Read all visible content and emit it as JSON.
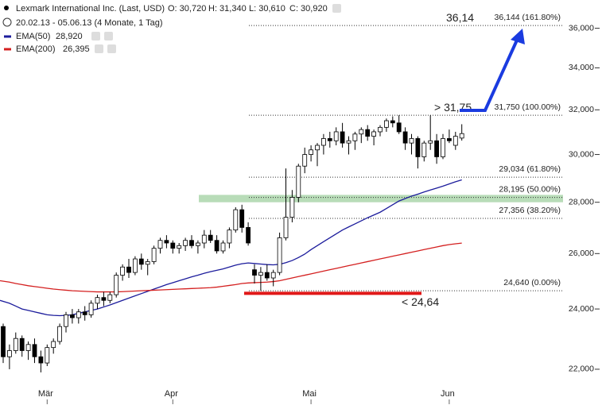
{
  "header": {
    "title": "Lexmark International Inc. (Last, USD)",
    "ohlc_labels": [
      "O: 30,720",
      "H: 31,340",
      "L: 30,610",
      "C: 30,920"
    ],
    "period": "20.02.13 - 05.06.13 (4 Monate, 1 Tag)"
  },
  "chart_data": {
    "type": "candlestick",
    "log_scale": true,
    "categories": [
      null,
      null,
      null,
      null,
      null,
      null,
      null,
      "Mär",
      null,
      null,
      null,
      null,
      null,
      null,
      null,
      null,
      null,
      null,
      null,
      null,
      null,
      null,
      null,
      null,
      null,
      null,
      null,
      "Apr",
      null,
      null,
      null,
      null,
      null,
      null,
      null,
      null,
      null,
      null,
      null,
      null,
      null,
      null,
      null,
      null,
      null,
      null,
      null,
      null,
      null,
      "Mai",
      null,
      null,
      null,
      null,
      null,
      null,
      null,
      null,
      null,
      null,
      null,
      null,
      null,
      null,
      null,
      null,
      null,
      null,
      null,
      null,
      null,
      "Jun",
      null,
      null
    ],
    "ohlc": [
      [
        23.4,
        23.5,
        22.2,
        22.4
      ],
      [
        22.4,
        22.8,
        22.0,
        22.6
      ],
      [
        22.6,
        23.2,
        22.5,
        23.0
      ],
      [
        23.0,
        23.1,
        22.4,
        22.6
      ],
      [
        22.6,
        22.9,
        22.3,
        22.8
      ],
      [
        22.8,
        23.0,
        22.2,
        22.4
      ],
      [
        22.4,
        22.6,
        21.9,
        22.2
      ],
      [
        22.2,
        22.8,
        22.1,
        22.7
      ],
      [
        22.7,
        23.0,
        22.5,
        22.9
      ],
      [
        22.9,
        23.5,
        22.8,
        23.4
      ],
      [
        23.4,
        23.9,
        23.2,
        23.8
      ],
      [
        23.8,
        24.0,
        23.5,
        23.7
      ],
      [
        23.7,
        24.0,
        23.5,
        23.9
      ],
      [
        23.9,
        24.1,
        23.6,
        23.8
      ],
      [
        23.8,
        24.3,
        23.7,
        24.2
      ],
      [
        24.2,
        24.5,
        24.0,
        24.4
      ],
      [
        24.4,
        24.6,
        24.1,
        24.3
      ],
      [
        24.3,
        24.6,
        24.2,
        24.5
      ],
      [
        24.5,
        25.3,
        24.4,
        25.2
      ],
      [
        25.2,
        25.6,
        25.0,
        25.5
      ],
      [
        25.5,
        25.8,
        25.1,
        25.3
      ],
      [
        25.3,
        25.9,
        25.2,
        25.8
      ],
      [
        25.8,
        26.0,
        25.4,
        25.6
      ],
      [
        25.6,
        25.8,
        25.2,
        25.7
      ],
      [
        25.7,
        26.3,
        25.6,
        26.2
      ],
      [
        26.2,
        26.6,
        26.0,
        26.5
      ],
      [
        26.5,
        26.7,
        26.2,
        26.4
      ],
      [
        26.4,
        26.5,
        26.0,
        26.2
      ],
      [
        26.2,
        26.4,
        26.0,
        26.3
      ],
      [
        26.3,
        26.6,
        26.1,
        26.5
      ],
      [
        26.5,
        26.7,
        26.2,
        26.3
      ],
      [
        26.3,
        26.5,
        26.0,
        26.4
      ],
      [
        26.4,
        26.9,
        26.2,
        26.7
      ],
      [
        26.7,
        26.9,
        26.4,
        26.5
      ],
      [
        26.5,
        26.7,
        26.0,
        26.1
      ],
      [
        26.1,
        26.5,
        26.0,
        26.4
      ],
      [
        26.4,
        27.0,
        26.2,
        26.9
      ],
      [
        26.9,
        27.8,
        26.8,
        27.7
      ],
      [
        27.7,
        27.9,
        26.8,
        27.0
      ],
      [
        27.0,
        27.2,
        26.3,
        26.4
      ],
      [
        25.4,
        25.6,
        24.9,
        25.2
      ],
      [
        25.2,
        25.5,
        24.64,
        25.3
      ],
      [
        25.3,
        25.6,
        25.0,
        25.1
      ],
      [
        25.1,
        25.4,
        24.8,
        25.3
      ],
      [
        25.3,
        26.8,
        25.2,
        26.6
      ],
      [
        26.6,
        29.4,
        26.5,
        27.4
      ],
      [
        27.4,
        28.5,
        27.2,
        28.2
      ],
      [
        28.2,
        29.6,
        28.0,
        29.5
      ],
      [
        29.5,
        30.3,
        29.2,
        30.0
      ],
      [
        30.0,
        30.4,
        29.7,
        30.2
      ],
      [
        30.2,
        30.5,
        29.5,
        30.4
      ],
      [
        30.4,
        30.9,
        30.0,
        30.7
      ],
      [
        30.7,
        31.0,
        30.3,
        30.6
      ],
      [
        30.6,
        31.2,
        30.4,
        31.0
      ],
      [
        31.0,
        31.4,
        30.3,
        30.5
      ],
      [
        30.5,
        30.8,
        30.0,
        30.6
      ],
      [
        30.6,
        31.0,
        30.2,
        30.9
      ],
      [
        30.9,
        31.2,
        30.5,
        31.1
      ],
      [
        31.1,
        31.3,
        30.6,
        30.8
      ],
      [
        30.8,
        31.1,
        30.4,
        31.0
      ],
      [
        31.0,
        31.3,
        30.8,
        31.2
      ],
      [
        31.2,
        31.6,
        31.0,
        31.5
      ],
      [
        31.5,
        31.7,
        31.2,
        31.4
      ],
      [
        31.4,
        31.75,
        30.9,
        31.0
      ],
      [
        31.0,
        31.2,
        30.2,
        30.5
      ],
      [
        30.5,
        30.9,
        30.0,
        30.7
      ],
      [
        30.7,
        30.8,
        29.4,
        29.9
      ],
      [
        29.9,
        30.6,
        29.7,
        30.5
      ],
      [
        30.5,
        31.75,
        30.2,
        30.6
      ],
      [
        30.6,
        30.9,
        29.6,
        29.9
      ],
      [
        29.9,
        30.9,
        29.8,
        30.7
      ],
      [
        30.7,
        31.1,
        30.5,
        30.6
      ],
      [
        30.4,
        31.0,
        30.2,
        30.8
      ],
      [
        30.72,
        31.34,
        30.61,
        30.92
      ]
    ],
    "up_color": "#ffffff",
    "down_color": "#000000",
    "lines": [
      {
        "name": "EMA(50)",
        "label": "28,920",
        "color": "#1c1c9c",
        "values": [
          24.3,
          24.2,
          24.1,
          24.0,
          23.95,
          23.9,
          23.85,
          23.8,
          23.78,
          23.77,
          23.78,
          23.8,
          23.85,
          23.9,
          23.95,
          24.0,
          24.07,
          24.14,
          24.22,
          24.3,
          24.38,
          24.46,
          24.54,
          24.62,
          24.7,
          24.78,
          24.86,
          24.93,
          25.0,
          25.07,
          25.14,
          25.2,
          25.27,
          25.33,
          25.38,
          25.43,
          25.5,
          25.57,
          25.62,
          25.65,
          25.63,
          25.61,
          25.59,
          25.58,
          25.6,
          25.66,
          25.74,
          25.85,
          25.98,
          26.15,
          26.3,
          26.45,
          26.6,
          26.75,
          26.9,
          27.02,
          27.14,
          27.26,
          27.38,
          27.49,
          27.6,
          27.75,
          27.9,
          28.05,
          28.15,
          28.25,
          28.33,
          28.42,
          28.5,
          28.58,
          28.66,
          28.75,
          28.84,
          28.92
        ]
      },
      {
        "name": "EMA(200)",
        "label": "26,395",
        "color": "#d42020",
        "values": [
          25.0,
          24.95,
          24.9,
          24.86,
          24.82,
          24.79,
          24.76,
          24.73,
          24.7,
          24.68,
          24.66,
          24.64,
          24.63,
          24.62,
          24.61,
          24.6,
          24.6,
          24.6,
          24.6,
          24.61,
          24.62,
          24.63,
          24.64,
          24.65,
          24.66,
          24.67,
          24.68,
          24.69,
          24.7,
          24.71,
          24.72,
          24.73,
          24.74,
          24.75,
          24.77,
          24.8,
          24.83,
          24.86,
          24.9,
          24.92,
          24.93,
          24.94,
          24.95,
          24.97,
          25.0,
          25.05,
          25.1,
          25.15,
          25.2,
          25.25,
          25.3,
          25.35,
          25.4,
          25.45,
          25.5,
          25.55,
          25.6,
          25.65,
          25.7,
          25.75,
          25.8,
          25.85,
          25.9,
          25.95,
          26.0,
          26.05,
          26.1,
          26.15,
          26.2,
          26.25,
          26.3,
          26.34,
          26.37,
          26.395
        ]
      }
    ],
    "ylim": [
      21.5,
      37.5
    ],
    "yticks": [
      {
        "value": 22,
        "label": "22,000"
      },
      {
        "value": 24,
        "label": "24,000"
      },
      {
        "value": 26,
        "label": "26,000"
      },
      {
        "value": 28,
        "label": "28,000"
      },
      {
        "value": 30,
        "label": "30,000"
      },
      {
        "value": 32,
        "label": "32,000"
      },
      {
        "value": 34,
        "label": "34,000"
      },
      {
        "value": 36,
        "label": "36,000"
      }
    ],
    "fib_levels": [
      {
        "value": 36.144,
        "label": "36,144 (161.80%)"
      },
      {
        "value": 31.75,
        "label": "31,750 (100.00%)"
      },
      {
        "value": 29.034,
        "label": "29,034 (61.80%)"
      },
      {
        "value": 28.195,
        "label": "28,195 (50.00%)"
      },
      {
        "value": 27.356,
        "label": "27,356 (38.20%)"
      },
      {
        "value": 24.64,
        "label": "24,640 (0.00%)"
      }
    ],
    "zone": {
      "range": [
        28.0,
        28.3
      ],
      "color": "#b8dcb8"
    },
    "support": {
      "value": 24.55,
      "color": "#e01818"
    },
    "annotations": [
      {
        "text": "36,14",
        "value": 36.14,
        "color": "#2a44c8"
      },
      {
        "text": "> 31,75",
        "value": 31.75,
        "color": "#2a44c8"
      },
      {
        "text": "< 24,64",
        "value": 24.64,
        "color": "#e01818"
      }
    ]
  }
}
